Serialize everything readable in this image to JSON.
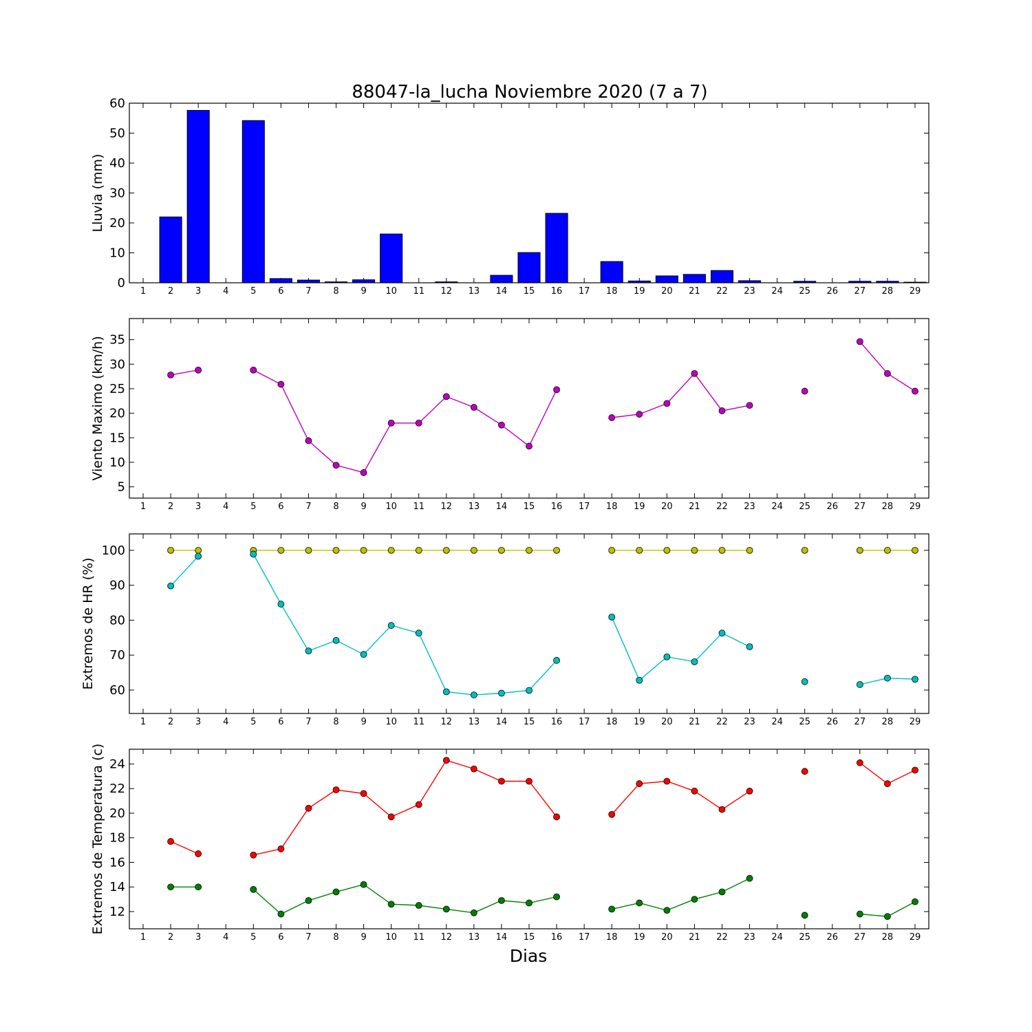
{
  "figure": {
    "title": "88047-la_lucha Noviembre 2020  (7 a 7)",
    "xlabel": "Dias"
  },
  "chart_data": [
    {
      "type": "bar",
      "ylabel": "Lluvia (mm)",
      "x": [
        1,
        2,
        3,
        4,
        5,
        6,
        7,
        8,
        9,
        10,
        11,
        12,
        13,
        14,
        15,
        16,
        17,
        18,
        19,
        20,
        21,
        22,
        23,
        24,
        25,
        26,
        27,
        28,
        29
      ],
      "xlim": [
        0.5,
        29.5
      ],
      "ylim": [
        0,
        60
      ],
      "yticks": [
        0,
        10,
        20,
        30,
        40,
        50,
        60
      ],
      "grid": false,
      "series": [
        {
          "color": "#0000ff",
          "values": [
            null,
            22,
            57.6,
            null,
            54.2,
            1.4,
            0.9,
            0.3,
            1.0,
            16.3,
            null,
            0.3,
            null,
            2.5,
            10.1,
            23.2,
            null,
            7.1,
            0.6,
            2.3,
            2.8,
            4.1,
            0.7,
            null,
            0.5,
            null,
            0.5,
            0.5,
            0.2
          ]
        }
      ]
    },
    {
      "type": "line",
      "ylabel": "Viento Maximo (km/h)",
      "x": [
        1,
        2,
        3,
        4,
        5,
        6,
        7,
        8,
        9,
        10,
        11,
        12,
        13,
        14,
        15,
        16,
        17,
        18,
        19,
        20,
        21,
        22,
        23,
        24,
        25,
        26,
        27,
        28,
        29
      ],
      "xlim": [
        0.5,
        29.5
      ],
      "ylim": [
        2.7,
        39.3
      ],
      "yticks": [
        5,
        10,
        15,
        20,
        25,
        30,
        35
      ],
      "grid": false,
      "series": [
        {
          "color": "#bf00bf",
          "values": [
            null,
            27.8,
            28.8,
            null,
            28.8,
            25.9,
            14.4,
            9.4,
            7.9,
            18.0,
            18.0,
            23.4,
            21.2,
            17.6,
            13.3,
            24.8,
            null,
            19.1,
            19.8,
            22.0,
            28.1,
            20.5,
            21.6,
            null,
            24.5,
            null,
            34.6,
            28.1,
            24.5
          ]
        }
      ]
    },
    {
      "type": "line",
      "ylabel": "Extremos de HR (%)",
      "x": [
        1,
        2,
        3,
        4,
        5,
        6,
        7,
        8,
        9,
        10,
        11,
        12,
        13,
        14,
        15,
        16,
        17,
        18,
        19,
        20,
        21,
        22,
        23,
        24,
        25,
        26,
        27,
        28,
        29
      ],
      "xlim": [
        0.5,
        29.5
      ],
      "ylim": [
        53.3,
        104.7
      ],
      "yticks": [
        60,
        70,
        80,
        90,
        100
      ],
      "grid": false,
      "series": [
        {
          "color": "#bfbf00",
          "values": [
            null,
            100,
            100,
            null,
            100,
            100,
            100,
            100,
            100,
            100,
            100,
            100,
            100,
            100,
            100,
            100,
            null,
            100,
            100,
            100,
            100,
            100,
            100,
            null,
            100,
            null,
            100,
            100,
            100
          ]
        },
        {
          "color": "#00bfbf",
          "values": [
            null,
            89.8,
            98.3,
            null,
            98.9,
            84.6,
            71.2,
            74.2,
            70.2,
            78.5,
            76.3,
            59.5,
            58.6,
            59.1,
            59.9,
            68.5,
            null,
            80.9,
            62.8,
            69.5,
            68.1,
            76.3,
            72.4,
            null,
            62.4,
            null,
            61.6,
            63.4,
            63.1
          ]
        }
      ]
    },
    {
      "type": "line",
      "ylabel": "Extremos de Temperatura (c)",
      "x": [
        1,
        2,
        3,
        4,
        5,
        6,
        7,
        8,
        9,
        10,
        11,
        12,
        13,
        14,
        15,
        16,
        17,
        18,
        19,
        20,
        21,
        22,
        23,
        24,
        25,
        26,
        27,
        28,
        29
      ],
      "xlim": [
        0.5,
        29.5
      ],
      "ylim": [
        10.6,
        25.2
      ],
      "yticks": [
        12,
        14,
        16,
        18,
        20,
        22,
        24
      ],
      "grid": false,
      "series": [
        {
          "color": "#ff0000",
          "values": [
            null,
            17.7,
            16.7,
            null,
            16.6,
            17.1,
            20.4,
            21.9,
            21.6,
            19.7,
            20.7,
            24.3,
            23.6,
            22.6,
            22.6,
            19.7,
            null,
            19.9,
            22.4,
            22.6,
            21.8,
            20.3,
            21.8,
            null,
            23.4,
            null,
            24.1,
            22.4,
            23.5
          ]
        },
        {
          "color": "#008000",
          "values": [
            null,
            14.0,
            14.0,
            null,
            13.8,
            11.8,
            12.9,
            13.6,
            14.2,
            12.6,
            12.5,
            12.2,
            11.9,
            12.9,
            12.7,
            13.2,
            null,
            12.2,
            12.7,
            12.1,
            13.0,
            13.6,
            14.7,
            null,
            11.7,
            null,
            11.8,
            11.6,
            12.8
          ]
        }
      ]
    }
  ]
}
